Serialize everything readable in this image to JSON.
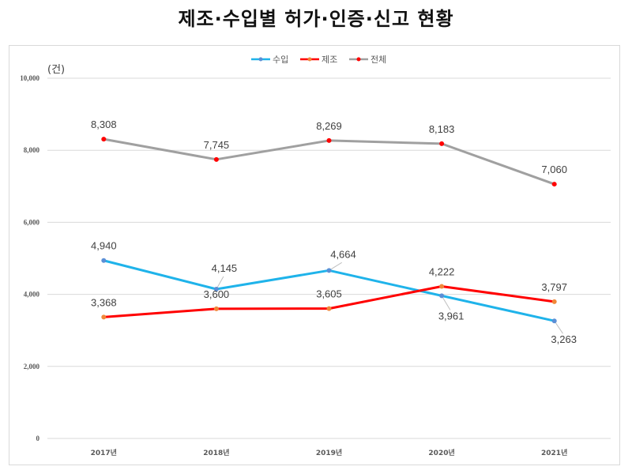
{
  "chart_data": {
    "type": "line",
    "title": "제조·수입별 허가·인증·신고 현황",
    "unit_label": "(건)",
    "xlabel": "",
    "ylabel": "",
    "ylim": [
      0,
      10000
    ],
    "yticks": [
      0,
      2000,
      4000,
      6000,
      8000,
      10000
    ],
    "ytick_labels": [
      "0",
      "2,000",
      "4,000",
      "6,000",
      "8,000",
      "10,000"
    ],
    "grid": true,
    "legend_position": "top-center",
    "categories": [
      "2017년",
      "2018년",
      "2019년",
      "2020년",
      "2021년"
    ],
    "series": [
      {
        "name": "수입",
        "values": [
          4940,
          4145,
          4664,
          3961,
          3263
        ],
        "labels": [
          "4,940",
          "4,145",
          "4,664",
          "3,961",
          "3,263"
        ],
        "line_color": "#1fb3ea",
        "marker_color": "#5b8fd6"
      },
      {
        "name": "제조",
        "values": [
          3368,
          3600,
          3605,
          4222,
          3797
        ],
        "labels": [
          "3,368",
          "3,600",
          "3,605",
          "4,222",
          "3,797"
        ],
        "line_color": "#ff0000",
        "marker_color": "#f0883a"
      },
      {
        "name": "전체",
        "values": [
          8308,
          7745,
          8269,
          8183,
          7060
        ],
        "labels": [
          "8,308",
          "7,745",
          "8,269",
          "8,183",
          "7,060"
        ],
        "line_color": "#a0a0a0",
        "marker_color": "#ff0000"
      }
    ]
  }
}
